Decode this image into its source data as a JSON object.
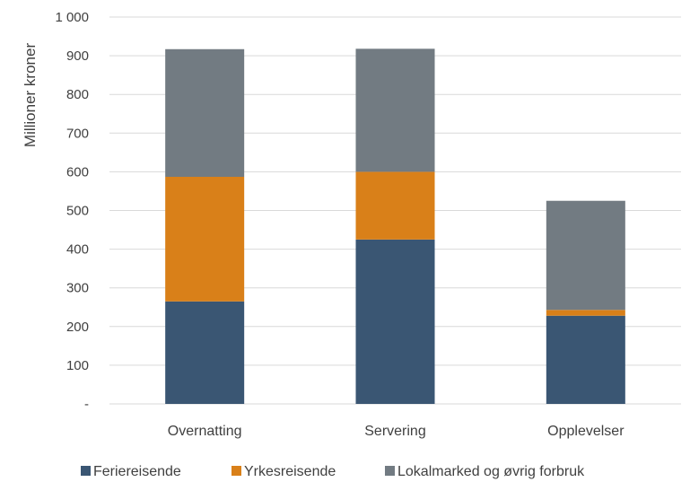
{
  "chart_data": {
    "type": "bar",
    "stacked": true,
    "categories": [
      "Overnatting",
      "Servering",
      "Opplevelser"
    ],
    "series": [
      {
        "name": "Feriereisende",
        "values": [
          265,
          425,
          228
        ],
        "color": "#3a5673"
      },
      {
        "name": "Yrkesreisende",
        "values": [
          322,
          175,
          15
        ],
        "color": "#d98019"
      },
      {
        "name": "Lokalmarked og øvrig forbruk",
        "values": [
          330,
          318,
          282
        ],
        "color": "#727b82"
      }
    ],
    "ylabel": "Millioner kroner",
    "ylim": [
      0,
      1000
    ],
    "yticks": [
      0,
      100,
      200,
      300,
      400,
      500,
      600,
      700,
      800,
      900,
      1000
    ],
    "ytick_labels": [
      "-",
      "100",
      "200",
      "300",
      "400",
      "500",
      "600",
      "700",
      "800",
      "900",
      "1 000"
    ],
    "grid": true,
    "legend_position": "bottom"
  }
}
